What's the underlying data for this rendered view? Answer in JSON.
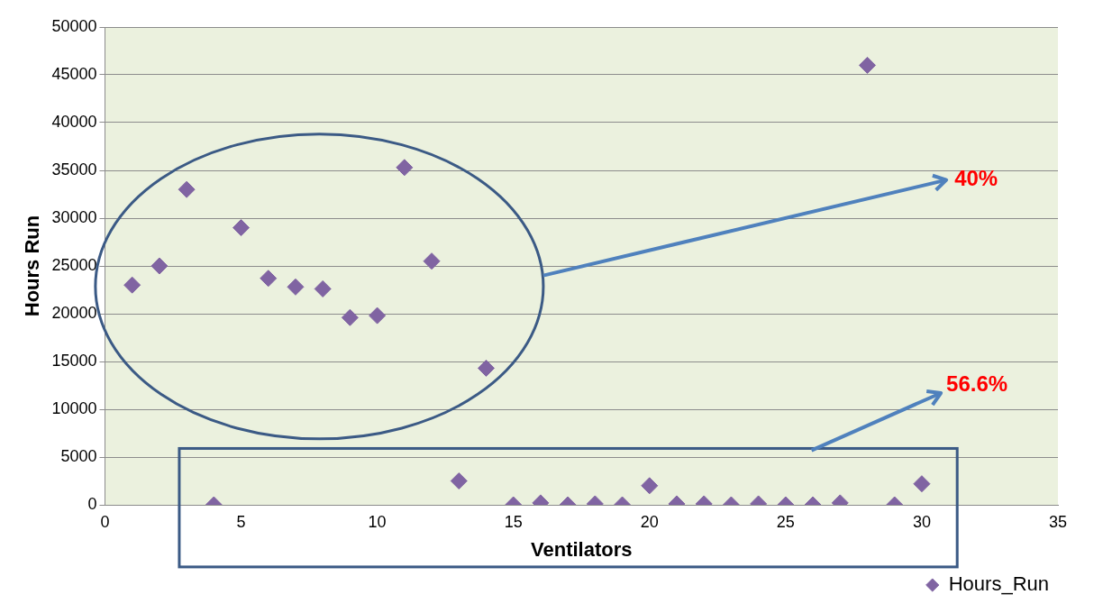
{
  "chart_data": {
    "type": "scatter",
    "xlabel": "Ventilators",
    "ylabel": "Hours Run",
    "x": [
      1,
      2,
      3,
      4,
      5,
      6,
      7,
      8,
      9,
      10,
      11,
      12,
      13,
      14,
      15,
      16,
      17,
      18,
      19,
      20,
      21,
      22,
      23,
      24,
      25,
      26,
      27,
      28,
      29,
      30
    ],
    "series": [
      {
        "name": "Hours_Run",
        "color": "#8064a2",
        "values": [
          23000,
          25000,
          33000,
          0,
          29000,
          23700,
          22800,
          22600,
          19600,
          19800,
          35300,
          25500,
          2500,
          14300,
          0,
          200,
          0,
          100,
          0,
          2000,
          100,
          100,
          0,
          100,
          0,
          0,
          200,
          46000,
          0,
          2200
        ]
      }
    ],
    "xlim": [
      0,
      35
    ],
    "xticks": [
      0,
      5,
      10,
      15,
      20,
      25,
      30,
      35
    ],
    "ylim": [
      0,
      50000
    ],
    "yticks": [
      0,
      5000,
      10000,
      15000,
      20000,
      25000,
      30000,
      35000,
      40000,
      45000,
      50000
    ],
    "grid": "y",
    "legend": "bottom right",
    "marker": "diamond",
    "annotations": [
      "40%",
      "56.6%"
    ]
  }
}
